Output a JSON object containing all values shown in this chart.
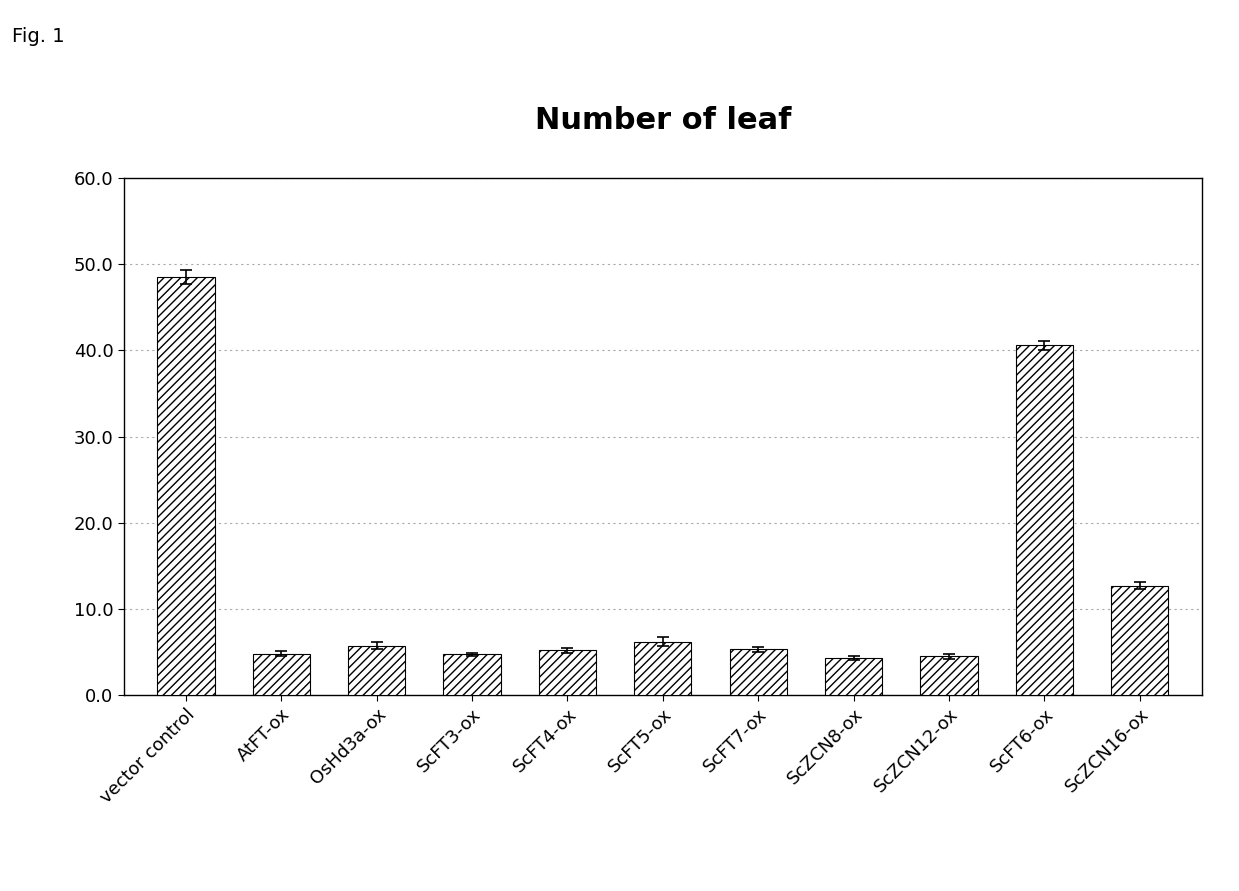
{
  "title": "Number of leaf",
  "fig_label": "Fig. 1",
  "categories": [
    "vector control",
    "AtFT-ox",
    "OsHd3a-ox",
    "ScFT3-ox",
    "ScFT4-ox",
    "ScFT5-ox",
    "ScFT7-ox",
    "ScZCN8-ox",
    "ScZCN12-ox",
    "ScFT6-ox",
    "ScZCN16-ox"
  ],
  "values": [
    48.5,
    4.8,
    5.7,
    4.7,
    5.2,
    6.2,
    5.3,
    4.3,
    4.5,
    40.6,
    12.7
  ],
  "errors": [
    0.8,
    0.3,
    0.4,
    0.2,
    0.3,
    0.5,
    0.3,
    0.2,
    0.3,
    0.5,
    0.4
  ],
  "ylim": [
    0.0,
    60.0
  ],
  "yticks": [
    0.0,
    10.0,
    20.0,
    30.0,
    40.0,
    50.0,
    60.0
  ],
  "hatch": "////",
  "background_color": "#ffffff",
  "title_fontsize": 22,
  "tick_fontsize": 13,
  "fig_label_fontsize": 14
}
